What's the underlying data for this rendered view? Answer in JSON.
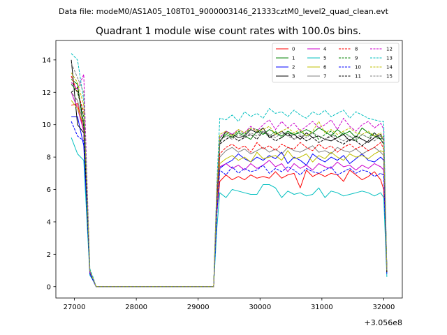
{
  "figure": {
    "suptitle": "Data file: modeM0/AS1A05_108T01_9000003146_21333cztM0_level2_quad_clean.evt"
  },
  "chart_data": {
    "type": "line",
    "title": "Quadrant 1 module wise count rates with 100.0s bins.",
    "xlabel": "",
    "ylabel": "",
    "x_offset_label": "+3.056e8",
    "xlim": [
      26700,
      32300
    ],
    "ylim": [
      -0.7,
      15.2
    ],
    "x_ticks": [
      27000,
      28000,
      29000,
      30000,
      31000,
      32000
    ],
    "x_tick_labels": [
      "27000",
      "28000",
      "29000",
      "30000",
      "31000",
      "32000"
    ],
    "y_ticks": [
      0,
      2,
      4,
      6,
      8,
      10,
      12,
      14
    ],
    "y_tick_labels": [
      "0",
      "2",
      "4",
      "6",
      "8",
      "10",
      "12",
      "14"
    ],
    "grid": false,
    "legend_placement": "top-right",
    "legend_columns": 4,
    "x": [
      26950,
      27050,
      27150,
      27250,
      27300,
      27350,
      29250,
      29300,
      29350,
      29450,
      29550,
      29650,
      29750,
      29850,
      29950,
      30050,
      30150,
      30250,
      30350,
      30450,
      30550,
      30650,
      30750,
      30850,
      30950,
      31050,
      31150,
      31250,
      31350,
      31450,
      31550,
      31650,
      31750,
      31850,
      31950,
      32000,
      32050
    ],
    "series": [
      {
        "name": "0",
        "color": "#ff0000",
        "dash": "solid",
        "values": [
          11.2,
          11.3,
          9.6,
          0.9,
          0.5,
          0,
          0,
          4.5,
          6.5,
          6.9,
          6.6,
          6.8,
          6.6,
          6.9,
          6.7,
          6.8,
          6.7,
          7.1,
          6.7,
          6.9,
          7.0,
          6.1,
          7.2,
          6.8,
          7.0,
          6.8,
          7.0,
          6.9,
          6.5,
          7.2,
          6.9,
          6.6,
          6.8,
          7.1,
          6.6,
          6.0,
          1.0
        ]
      },
      {
        "name": "1",
        "color": "#008000",
        "dash": "solid",
        "values": [
          12.8,
          12.5,
          9.8,
          0.9,
          0.5,
          0,
          0,
          5.5,
          9.0,
          9.4,
          9.2,
          9.5,
          9.3,
          9.1,
          9.6,
          9.4,
          9.7,
          9.5,
          9.3,
          9.6,
          9.4,
          9.5,
          9.7,
          9.5,
          9.8,
          9.6,
          9.3,
          9.7,
          9.4,
          9.6,
          9.2,
          9.8,
          9.5,
          9.3,
          9.1,
          8.8,
          1.0
        ]
      },
      {
        "name": "2",
        "color": "#0000ff",
        "dash": "solid",
        "values": [
          10.5,
          10.5,
          8.7,
          0.8,
          0.4,
          0,
          0,
          4.6,
          7.3,
          7.6,
          7.8,
          8.2,
          7.9,
          7.7,
          8.0,
          7.8,
          8.1,
          7.9,
          8.3,
          7.6,
          8.0,
          7.8,
          7.5,
          8.2,
          7.9,
          7.7,
          8.0,
          7.8,
          8.1,
          7.6,
          7.9,
          8.2,
          7.8,
          7.7,
          8.0,
          7.8,
          0.9
        ]
      },
      {
        "name": "3",
        "color": "#000000",
        "dash": "solid",
        "values": [
          14.0,
          10.0,
          9.5,
          0.9,
          0.5,
          0,
          0,
          5.6,
          8.9,
          9.6,
          9.4,
          9.2,
          9.3,
          9.7,
          9.5,
          9.8,
          9.2,
          9.4,
          9.6,
          9.3,
          9.4,
          9.1,
          9.5,
          9.2,
          9.3,
          9.1,
          9.0,
          9.2,
          9.4,
          9.0,
          9.3,
          9.1,
          8.9,
          9.2,
          9.4,
          9.0,
          1.0
        ]
      },
      {
        "name": "4",
        "color": "#cc00cc",
        "dash": "solid",
        "values": [
          12.0,
          11.0,
          9.6,
          0.9,
          0.5,
          0,
          0,
          4.7,
          7.4,
          7.6,
          7.3,
          7.5,
          7.2,
          7.6,
          7.3,
          7.5,
          7.8,
          7.4,
          7.6,
          7.1,
          7.6,
          7.3,
          7.5,
          7.2,
          7.6,
          7.4,
          7.3,
          7.7,
          7.4,
          7.5,
          7.2,
          7.5,
          7.3,
          7.6,
          7.4,
          7.2,
          0.9
        ]
      },
      {
        "name": "5",
        "color": "#00bfbf",
        "dash": "solid",
        "values": [
          9.2,
          8.2,
          7.8,
          0.7,
          0.4,
          0,
          0,
          3.5,
          5.8,
          5.5,
          6.0,
          5.9,
          5.8,
          5.7,
          5.7,
          6.3,
          6.3,
          6.1,
          5.5,
          5.9,
          5.7,
          5.8,
          5.6,
          5.7,
          6.1,
          5.5,
          5.9,
          5.8,
          5.6,
          5.7,
          5.8,
          5.9,
          5.8,
          5.6,
          5.8,
          5.5,
          0.6
        ]
      },
      {
        "name": "6",
        "color": "#bfbf00",
        "dash": "solid",
        "values": [
          11.5,
          11.0,
          10.0,
          0.9,
          0.5,
          0,
          0,
          5.0,
          7.6,
          7.9,
          8.1,
          7.8,
          8.0,
          7.7,
          8.3,
          7.9,
          8.0,
          8.1,
          7.8,
          8.4,
          7.9,
          8.0,
          8.2,
          7.7,
          8.1,
          7.9,
          8.3,
          8.0,
          7.8,
          8.2,
          8.0,
          8.1,
          7.9,
          8.2,
          8.4,
          8.3,
          0.9
        ]
      },
      {
        "name": "7",
        "color": "#808080",
        "dash": "solid",
        "values": [
          12.0,
          11.5,
          10.0,
          0.9,
          0.5,
          0,
          0,
          5.2,
          8.0,
          8.4,
          8.6,
          8.3,
          8.5,
          8.2,
          8.4,
          8.6,
          8.3,
          8.5,
          8.2,
          8.6,
          8.4,
          8.3,
          8.5,
          8.7,
          8.3,
          8.4,
          8.2,
          8.6,
          8.4,
          8.3,
          8.5,
          8.2,
          8.4,
          8.6,
          8.3,
          8.1,
          0.9
        ]
      },
      {
        "name": "8",
        "color": "#ff0000",
        "dash": "dashed",
        "values": [
          13.0,
          12.0,
          10.8,
          0.9,
          0.5,
          0,
          0,
          5.3,
          8.2,
          8.6,
          8.8,
          8.5,
          8.7,
          8.3,
          8.9,
          8.5,
          8.7,
          8.4,
          8.8,
          8.6,
          8.5,
          8.9,
          8.6,
          8.4,
          8.8,
          8.5,
          8.7,
          8.3,
          8.6,
          8.8,
          8.5,
          8.7,
          8.4,
          8.6,
          8.9,
          8.5,
          0.9
        ]
      },
      {
        "name": "9",
        "color": "#008000",
        "dash": "dashed",
        "values": [
          12.5,
          12.0,
          10.5,
          0.9,
          0.5,
          0,
          0,
          5.6,
          9.2,
          9.5,
          9.3,
          9.6,
          9.4,
          9.8,
          9.7,
          9.5,
          9.3,
          9.6,
          9.2,
          9.5,
          9.4,
          9.6,
          9.3,
          9.5,
          9.1,
          9.4,
          9.6,
          9.2,
          9.5,
          9.3,
          9.0,
          9.4,
          9.2,
          9.5,
          9.1,
          9.3,
          1.0
        ]
      },
      {
        "name": "10",
        "color": "#0000ff",
        "dash": "dashed",
        "values": [
          10.2,
          9.3,
          9.0,
          0.8,
          0.4,
          0,
          0,
          4.3,
          7.2,
          6.9,
          7.4,
          7.0,
          7.3,
          7.1,
          7.2,
          7.5,
          7.0,
          7.3,
          7.1,
          7.4,
          7.2,
          6.9,
          7.3,
          7.1,
          7.0,
          7.2,
          7.4,
          6.9,
          7.1,
          7.3,
          7.0,
          7.2,
          7.1,
          6.8,
          7.0,
          6.9,
          0.8
        ]
      },
      {
        "name": "11",
        "color": "#000000",
        "dash": "dashed",
        "values": [
          12.0,
          12.3,
          10.0,
          0.9,
          0.5,
          0,
          0,
          5.4,
          8.8,
          9.1,
          9.3,
          9.0,
          9.2,
          9.4,
          9.1,
          9.6,
          9.3,
          9.0,
          9.2,
          9.5,
          9.1,
          9.3,
          9.0,
          9.2,
          8.9,
          9.1,
          9.3,
          9.0,
          8.8,
          9.1,
          9.0,
          8.7,
          9.0,
          9.5,
          9.1,
          8.8,
          0.9
        ]
      },
      {
        "name": "12",
        "color": "#cc00cc",
        "dash": "dashed",
        "values": [
          12.6,
          12.2,
          13.1,
          0.9,
          0.5,
          0,
          0,
          5.7,
          9.2,
          9.6,
          9.4,
          9.7,
          9.5,
          9.9,
          9.6,
          10.0,
          10.3,
          9.7,
          10.2,
          9.8,
          10.1,
          9.6,
          9.9,
          10.2,
          9.8,
          10.0,
          10.3,
          9.7,
          10.4,
          9.9,
          9.6,
          10.0,
          10.2,
          9.8,
          10.1,
          9.7,
          1.1
        ]
      },
      {
        "name": "13",
        "color": "#00bfbf",
        "dash": "dashed",
        "values": [
          14.4,
          14.0,
          11.5,
          1.1,
          0.6,
          0,
          0,
          6.2,
          10.4,
          10.3,
          10.6,
          10.2,
          10.8,
          10.5,
          10.7,
          10.4,
          11.0,
          10.7,
          10.8,
          10.5,
          10.9,
          10.6,
          10.4,
          10.8,
          10.6,
          10.9,
          10.5,
          10.7,
          10.9,
          10.4,
          10.8,
          10.6,
          10.4,
          10.3,
          10.2,
          10.2,
          1.0
        ]
      },
      {
        "name": "14",
        "color": "#bfbf00",
        "dash": "dashed",
        "values": [
          13.2,
          12.6,
          11.2,
          1.0,
          0.5,
          0,
          0,
          5.8,
          9.4,
          9.6,
          9.3,
          9.7,
          9.5,
          9.8,
          9.6,
          9.7,
          9.9,
          9.4,
          9.6,
          9.8,
          9.5,
          9.7,
          9.3,
          9.6,
          10.2,
          9.5,
          9.7,
          9.4,
          9.6,
          9.8,
          9.5,
          9.4,
          9.6,
          9.3,
          9.5,
          9.0,
          1.0
        ]
      },
      {
        "name": "15",
        "color": "#808080",
        "dash": "dashed",
        "values": [
          13.8,
          12.9,
          12.0,
          1.0,
          0.5,
          0,
          0,
          5.9,
          9.0,
          9.3,
          9.1,
          9.4,
          9.2,
          9.5,
          9.3,
          9.6,
          9.4,
          9.2,
          9.5,
          9.3,
          9.1,
          9.4,
          9.2,
          9.5,
          9.3,
          9.1,
          9.4,
          9.2,
          9.0,
          9.3,
          9.1,
          9.4,
          9.2,
          9.0,
          9.3,
          9.1,
          1.0
        ]
      }
    ]
  }
}
